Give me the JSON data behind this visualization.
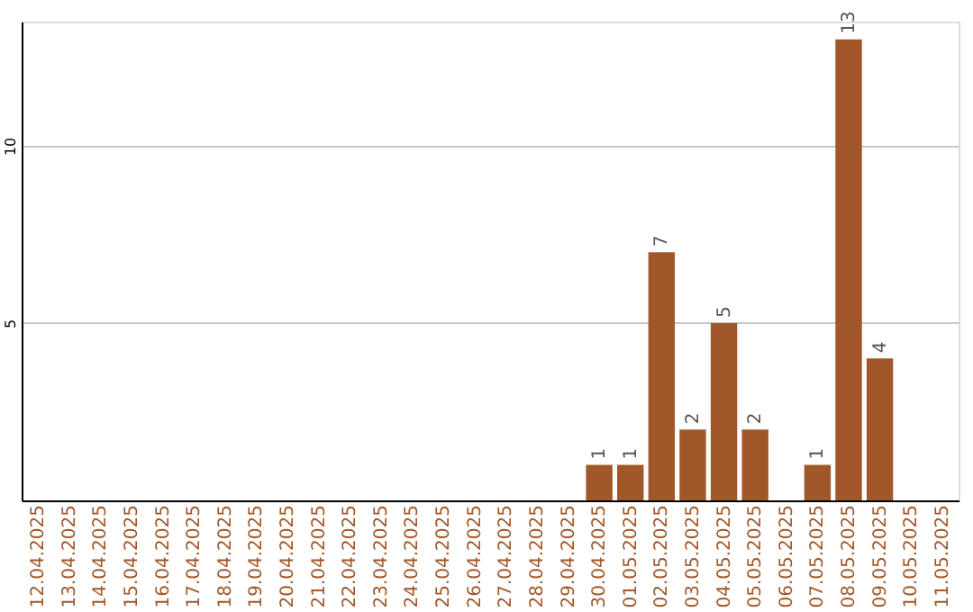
{
  "chart_data": {
    "type": "bar",
    "categories": [
      "12.04.2025",
      "13.04.2025",
      "14.04.2025",
      "15.04.2025",
      "16.04.2025",
      "17.04.2025",
      "18.04.2025",
      "19.04.2025",
      "20.04.2025",
      "21.04.2025",
      "22.04.2025",
      "23.04.2025",
      "24.04.2025",
      "25.04.2025",
      "26.04.2025",
      "27.04.2025",
      "28.04.2025",
      "29.04.2025",
      "30.04.2025",
      "01.05.2025",
      "02.05.2025",
      "03.05.2025",
      "04.05.2025",
      "05.05.2025",
      "06.05.2025",
      "07.05.2025",
      "08.05.2025",
      "09.05.2025",
      "10.05.2025",
      "11.05.2025"
    ],
    "values": [
      0,
      0,
      0,
      0,
      0,
      0,
      0,
      0,
      0,
      0,
      0,
      0,
      0,
      0,
      0,
      0,
      0,
      0,
      1,
      1,
      7,
      2,
      5,
      2,
      0,
      1,
      13,
      4,
      0,
      0
    ],
    "value_labels": [
      null,
      null,
      null,
      null,
      null,
      null,
      null,
      null,
      null,
      null,
      null,
      null,
      null,
      null,
      null,
      null,
      null,
      null,
      "1",
      "1",
      "7",
      "2",
      "5",
      "2",
      null,
      "1",
      "13",
      "4",
      null,
      null
    ],
    "color": "#a0582a",
    "ylim": [
      0,
      13.5
    ],
    "yticks": [
      5,
      10
    ],
    "grid": "y"
  }
}
